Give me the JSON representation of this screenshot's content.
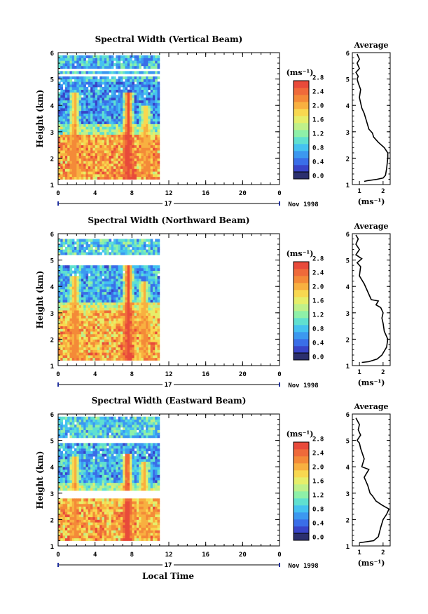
{
  "figure": {
    "xlabel": "Local Time",
    "date_label": "Nov 1998",
    "day_label": "17"
  },
  "colorbar": {
    "unit_label": "(ms⁻¹)",
    "tick_labels": [
      "0.0",
      "0.4",
      "0.8",
      "1.2",
      "1.6",
      "2.0",
      "2.4",
      "2.8"
    ],
    "colors": [
      "#2b2f6e",
      "#3844c8",
      "#3a6ee8",
      "#3c98f0",
      "#45c2f0",
      "#60e0d0",
      "#8ef0a8",
      "#bff08a",
      "#e6ee6a",
      "#f8d850",
      "#f8b040",
      "#f48a38",
      "#ef6a3a",
      "#e84a3a"
    ]
  },
  "chart_data": [
    {
      "type": "heatmap",
      "title": "Spectral Width (Vertical Beam)",
      "ylabel": "Height (km)",
      "x_ticks": [
        "0",
        "4",
        "8",
        "12",
        "16",
        "20",
        "0"
      ],
      "y_ticks": [
        "1",
        "2",
        "3",
        "4",
        "5",
        "6"
      ],
      "xlim": [
        0,
        24
      ],
      "ylim": [
        1,
        6
      ],
      "data_time_range_h": [
        0,
        11
      ],
      "data_height_range_km": [
        1.2,
        5.9
      ],
      "gap_bands_km": [
        [
          5.05,
          5.15
        ],
        [
          5.3,
          5.4
        ]
      ],
      "layers": [
        {
          "height_km": [
            1.2,
            2.9
          ],
          "width": 2.1
        },
        {
          "height_km": [
            2.9,
            3.3
          ],
          "width": 1.4
        },
        {
          "height_km": [
            3.3,
            4.9
          ],
          "width": 0.7
        },
        {
          "height_km": [
            4.9,
            5.9
          ],
          "width": 0.9
        }
      ],
      "plumes": [
        {
          "time_h": 1.8,
          "height_km": [
            1.3,
            4.5
          ],
          "width": 2.3
        },
        {
          "time_h": 7.6,
          "height_km": [
            1.2,
            4.5
          ],
          "width": 2.8
        },
        {
          "time_h": 9.5,
          "height_km": [
            1.3,
            4.0
          ],
          "width": 2.2
        }
      ],
      "average_profile": {
        "title": "Average",
        "xlabel": "(ms⁻¹)",
        "x_ticks": [
          "1",
          "2"
        ],
        "xlim": [
          0.7,
          2.3
        ],
        "points": [
          [
            1.2,
            1.12
          ],
          [
            1.35,
            1.15
          ],
          [
            1.75,
            1.2
          ],
          [
            2.0,
            1.25
          ],
          [
            2.1,
            1.35
          ],
          [
            2.15,
            1.6
          ],
          [
            2.2,
            2.0
          ],
          [
            2.2,
            2.2
          ],
          [
            2.05,
            2.4
          ],
          [
            1.8,
            2.6
          ],
          [
            1.6,
            2.8
          ],
          [
            1.55,
            2.95
          ],
          [
            1.4,
            3.1
          ],
          [
            1.3,
            3.4
          ],
          [
            1.2,
            3.7
          ],
          [
            1.1,
            3.9
          ],
          [
            1.0,
            4.3
          ],
          [
            1.05,
            4.6
          ],
          [
            0.95,
            4.85
          ],
          [
            0.9,
            5.0
          ],
          [
            0.95,
            5.1
          ],
          [
            0.85,
            5.25
          ],
          [
            1.0,
            5.4
          ],
          [
            0.9,
            5.6
          ],
          [
            1.0,
            5.75
          ],
          [
            0.9,
            5.95
          ]
        ]
      }
    },
    {
      "type": "heatmap",
      "title": "Spectral Width (Northward Beam)",
      "ylabel": "Height (km)",
      "x_ticks": [
        "0",
        "4",
        "8",
        "12",
        "16",
        "20",
        "0"
      ],
      "y_ticks": [
        "1",
        "2",
        "3",
        "4",
        "5",
        "6"
      ],
      "xlim": [
        0,
        24
      ],
      "ylim": [
        1,
        6
      ],
      "data_time_range_h": [
        0,
        11
      ],
      "data_height_range_km": [
        1.2,
        5.75
      ],
      "gap_bands_km": [
        [
          4.9,
          5.15
        ]
      ],
      "layers": [
        {
          "height_km": [
            1.2,
            3.1
          ],
          "width": 2.0
        },
        {
          "height_km": [
            3.1,
            3.4
          ],
          "width": 1.6
        },
        {
          "height_km": [
            3.4,
            4.8
          ],
          "width": 0.8
        },
        {
          "height_km": [
            5.15,
            5.75
          ],
          "width": 1.0
        }
      ],
      "plumes": [
        {
          "time_h": 1.8,
          "height_km": [
            1.3,
            4.4
          ],
          "width": 2.3
        },
        {
          "time_h": 7.6,
          "height_km": [
            1.2,
            4.8
          ],
          "width": 2.8
        },
        {
          "time_h": 9.3,
          "height_km": [
            1.3,
            4.2
          ],
          "width": 2.2
        }
      ],
      "average_profile": {
        "title": "Average",
        "xlabel": "(ms⁻¹)",
        "x_ticks": [
          "1",
          "2"
        ],
        "xlim": [
          0.7,
          2.3
        ],
        "points": [
          [
            1.1,
            1.12
          ],
          [
            1.4,
            1.15
          ],
          [
            1.75,
            1.25
          ],
          [
            1.95,
            1.4
          ],
          [
            2.15,
            1.7
          ],
          [
            2.2,
            2.0
          ],
          [
            2.05,
            2.3
          ],
          [
            2.0,
            2.6
          ],
          [
            1.95,
            2.8
          ],
          [
            2.0,
            3.0
          ],
          [
            1.9,
            3.2
          ],
          [
            1.7,
            3.3
          ],
          [
            1.8,
            3.45
          ],
          [
            1.5,
            3.5
          ],
          [
            1.3,
            3.9
          ],
          [
            1.2,
            4.1
          ],
          [
            1.0,
            4.4
          ],
          [
            1.05,
            4.75
          ],
          [
            0.9,
            4.9
          ],
          [
            1.1,
            5.05
          ],
          [
            0.85,
            5.2
          ],
          [
            1.0,
            5.4
          ],
          [
            0.85,
            5.6
          ],
          [
            0.95,
            5.8
          ],
          [
            0.85,
            5.95
          ]
        ]
      }
    },
    {
      "type": "heatmap",
      "title": "Spectral Width (Eastward Beam)",
      "ylabel": "Height (km)",
      "x_ticks": [
        "0",
        "4",
        "8",
        "12",
        "16",
        "20",
        "0"
      ],
      "y_ticks": [
        "1",
        "2",
        "3",
        "4",
        "5",
        "6"
      ],
      "xlim": [
        0,
        24
      ],
      "ylim": [
        1,
        6
      ],
      "data_time_range_h": [
        0,
        11
      ],
      "data_height_range_km": [
        1.2,
        5.85
      ],
      "gap_bands_km": [
        [
          2.85,
          3.1
        ],
        [
          4.85,
          5.1
        ]
      ],
      "layers": [
        {
          "height_km": [
            1.2,
            2.85
          ],
          "width": 2.0
        },
        {
          "height_km": [
            3.1,
            3.4
          ],
          "width": 1.4
        },
        {
          "height_km": [
            3.4,
            4.85
          ],
          "width": 0.8
        },
        {
          "height_km": [
            5.1,
            5.85
          ],
          "width": 1.0
        }
      ],
      "plumes": [
        {
          "time_h": 1.8,
          "height_km": [
            1.3,
            4.4
          ],
          "width": 2.3
        },
        {
          "time_h": 7.5,
          "height_km": [
            1.2,
            4.5
          ],
          "width": 2.8
        },
        {
          "time_h": 9.3,
          "height_km": [
            1.3,
            4.2
          ],
          "width": 2.2
        }
      ],
      "average_profile": {
        "title": "Average",
        "xlabel": "(ms⁻¹)",
        "x_ticks": [
          "1",
          "2"
        ],
        "xlim": [
          0.7,
          2.3
        ],
        "points": [
          [
            1.0,
            1.12
          ],
          [
            1.6,
            1.2
          ],
          [
            1.8,
            1.35
          ],
          [
            1.9,
            1.7
          ],
          [
            2.0,
            2.0
          ],
          [
            2.15,
            2.2
          ],
          [
            2.25,
            2.4
          ],
          [
            1.95,
            2.55
          ],
          [
            1.7,
            2.7
          ],
          [
            1.55,
            2.9
          ],
          [
            1.45,
            3.0
          ],
          [
            1.35,
            3.3
          ],
          [
            1.2,
            3.6
          ],
          [
            1.4,
            3.9
          ],
          [
            1.1,
            4.0
          ],
          [
            1.2,
            4.3
          ],
          [
            1.05,
            4.7
          ],
          [
            1.0,
            4.9
          ],
          [
            0.9,
            5.0
          ],
          [
            1.05,
            5.2
          ],
          [
            0.95,
            5.4
          ],
          [
            1.0,
            5.6
          ],
          [
            0.85,
            5.85
          ]
        ]
      }
    }
  ]
}
